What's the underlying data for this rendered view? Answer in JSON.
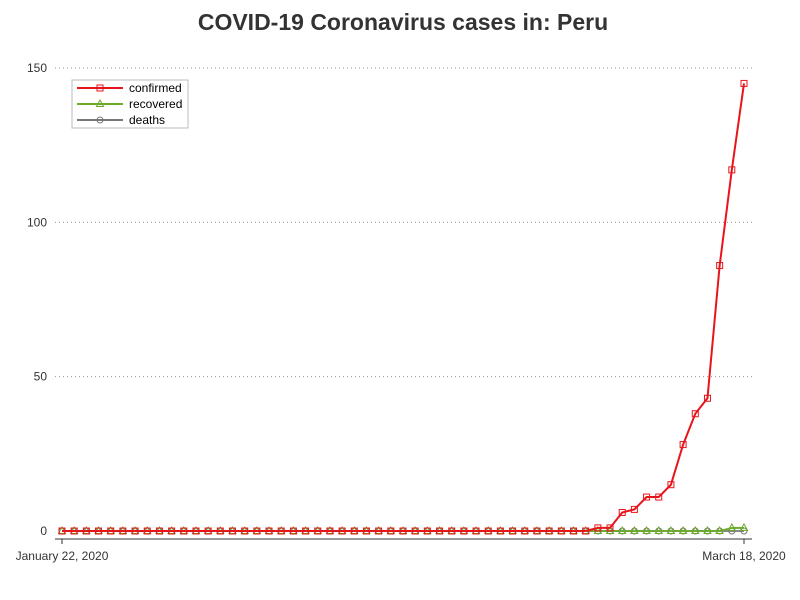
{
  "chart_data": {
    "type": "line",
    "title": "COVID-19 Coronavirus cases in: Peru",
    "xlabel": "",
    "ylabel": "",
    "x_start": "January 22, 2020",
    "x_end": "March 18, 2020",
    "x_tick_labels": [
      "January 22, 2020",
      "March 18, 2020"
    ],
    "y_ticks": [
      0,
      50,
      100,
      150
    ],
    "ylim": [
      0,
      150
    ],
    "grid": "horizontal dotted",
    "legend_position": "top-left",
    "series": [
      {
        "name": "confirmed",
        "color": "#e8141b",
        "marker": "square",
        "values": [
          0,
          0,
          0,
          0,
          0,
          0,
          0,
          0,
          0,
          0,
          0,
          0,
          0,
          0,
          0,
          0,
          0,
          0,
          0,
          0,
          0,
          0,
          0,
          0,
          0,
          0,
          0,
          0,
          0,
          0,
          0,
          0,
          0,
          0,
          0,
          0,
          0,
          0,
          0,
          0,
          0,
          0,
          0,
          0,
          1,
          1,
          6,
          7,
          11,
          11,
          15,
          28,
          38,
          43,
          86,
          117,
          145
        ]
      },
      {
        "name": "recovered",
        "color": "#6aab27",
        "marker": "triangle",
        "values": [
          0,
          0,
          0,
          0,
          0,
          0,
          0,
          0,
          0,
          0,
          0,
          0,
          0,
          0,
          0,
          0,
          0,
          0,
          0,
          0,
          0,
          0,
          0,
          0,
          0,
          0,
          0,
          0,
          0,
          0,
          0,
          0,
          0,
          0,
          0,
          0,
          0,
          0,
          0,
          0,
          0,
          0,
          0,
          0,
          0,
          0,
          0,
          0,
          0,
          0,
          0,
          0,
          0,
          0,
          0,
          1,
          1
        ]
      },
      {
        "name": "deaths",
        "color": "#777777",
        "marker": "circle",
        "values": [
          0,
          0,
          0,
          0,
          0,
          0,
          0,
          0,
          0,
          0,
          0,
          0,
          0,
          0,
          0,
          0,
          0,
          0,
          0,
          0,
          0,
          0,
          0,
          0,
          0,
          0,
          0,
          0,
          0,
          0,
          0,
          0,
          0,
          0,
          0,
          0,
          0,
          0,
          0,
          0,
          0,
          0,
          0,
          0,
          0,
          0,
          0,
          0,
          0,
          0,
          0,
          0,
          0,
          0,
          0,
          0,
          0
        ]
      }
    ]
  }
}
